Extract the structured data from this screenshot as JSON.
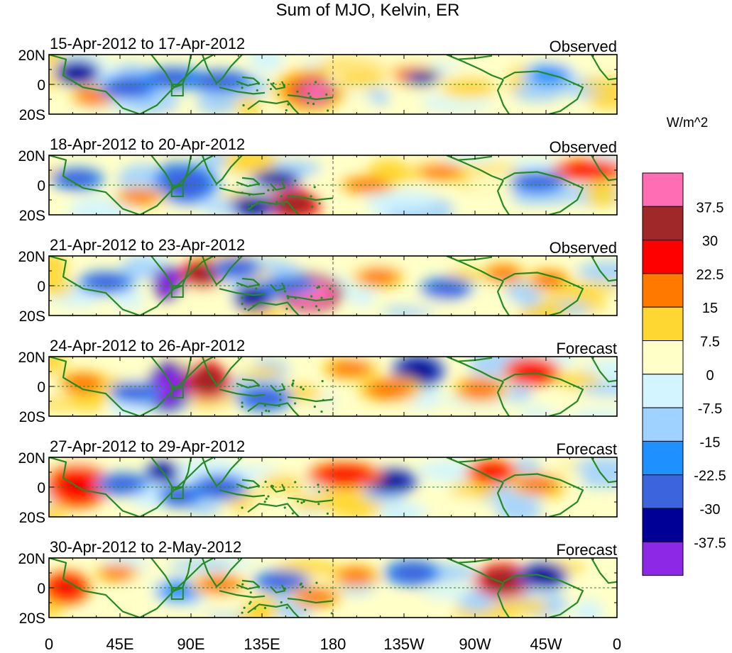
{
  "figure": {
    "title": "Sum of MJO, Kelvin, ER",
    "colorbar_unit": "W/m^2"
  },
  "panels": [
    {
      "date_range": "15-Apr-2012 to 17-Apr-2012",
      "type_label": "Observed"
    },
    {
      "date_range": "18-Apr-2012 to 20-Apr-2012",
      "type_label": "Observed"
    },
    {
      "date_range": "21-Apr-2012 to 23-Apr-2012",
      "type_label": "Observed"
    },
    {
      "date_range": "24-Apr-2012 to 26-Apr-2012",
      "type_label": "Forecast"
    },
    {
      "date_range": "27-Apr-2012 to 29-Apr-2012",
      "type_label": "Forecast"
    },
    {
      "date_range": "30-Apr-2012 to 2-May-2012",
      "type_label": "Forecast"
    }
  ],
  "axes": {
    "lat_labels": [
      "20N",
      "0",
      "20S"
    ],
    "lon_labels": [
      "0",
      "45E",
      "90E",
      "135E",
      "180",
      "135W",
      "90W",
      "45W",
      "0"
    ]
  },
  "colorbar": {
    "labels": [
      "37.5",
      "30",
      "22.5",
      "15",
      "7.5",
      "0",
      "-7.5",
      "-15",
      "-22.5",
      "-30",
      "-37.5"
    ],
    "colors": [
      "#ff6eb4",
      "#a02828",
      "#ff0000",
      "#ff7800",
      "#ffd732",
      "#ffffc8",
      "#d2f5ff",
      "#a0d2ff",
      "#1e90ff",
      "#3c64dc",
      "#000096",
      "#8c28e6"
    ]
  },
  "colors": {
    "coast": "#228b22",
    "border": "#2e8b2e",
    "grid": "#228b22"
  }
}
